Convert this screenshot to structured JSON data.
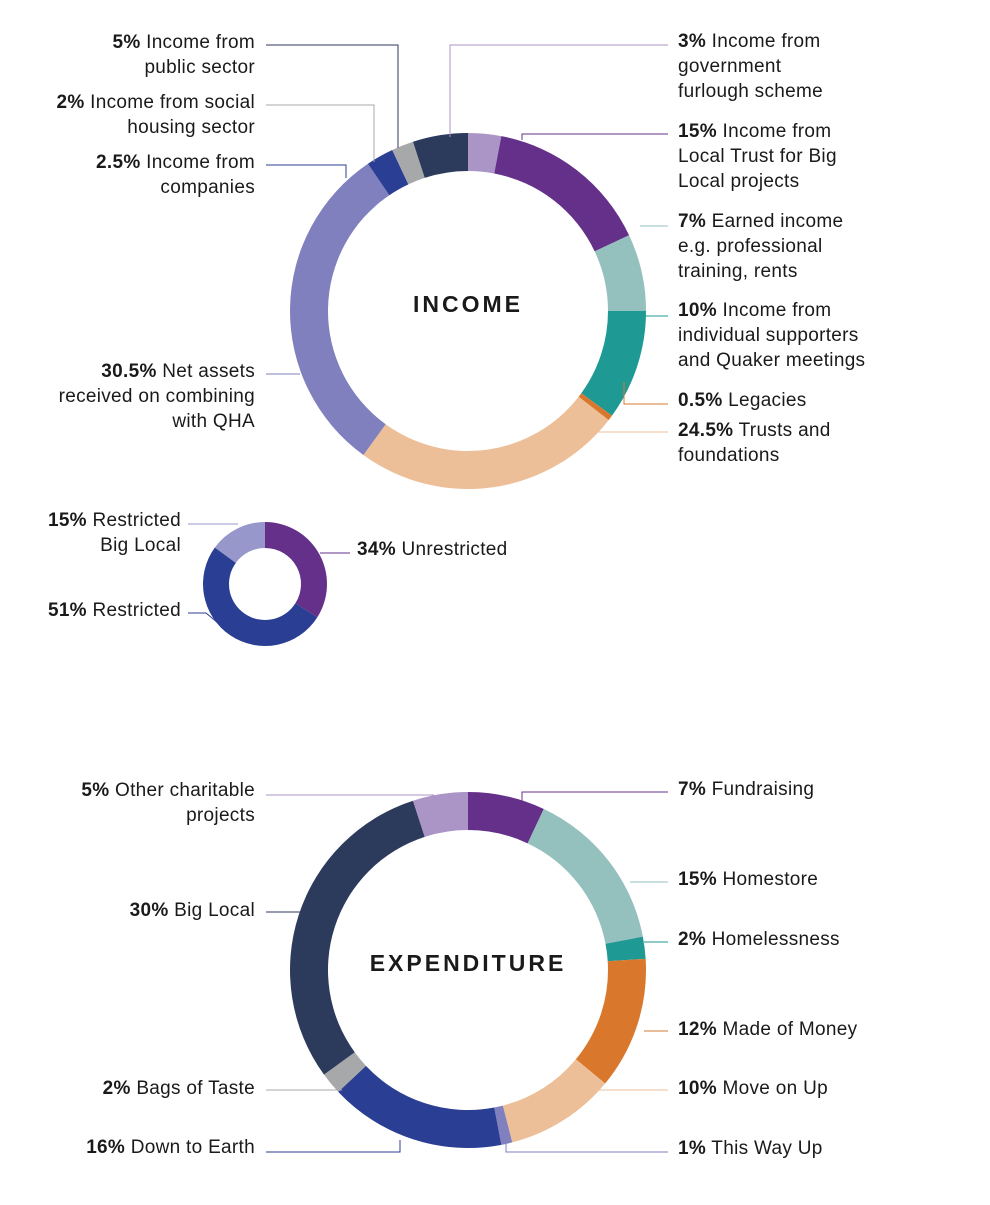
{
  "chart_data": [
    {
      "type": "pie",
      "title": "INCOME",
      "slices": [
        {
          "pct": "3%",
          "value": 3,
          "lines": [
            "Income from",
            "government",
            "furlough scheme"
          ],
          "color": "#ab94c6"
        },
        {
          "pct": "15%",
          "value": 15,
          "lines": [
            "Income from",
            "Local Trust for Big",
            "Local projects"
          ],
          "color": "#643089"
        },
        {
          "pct": "7%",
          "value": 7,
          "lines": [
            "Earned income",
            "e.g. professional",
            "training, rents"
          ],
          "color": "#94c0bd"
        },
        {
          "pct": "10%",
          "value": 10,
          "lines": [
            "Income from",
            "individual supporters",
            "and Quaker meetings"
          ],
          "color": "#1e9994"
        },
        {
          "pct": "0.5%",
          "value": 0.5,
          "lines": [
            "Legacies"
          ],
          "color": "#d9782c"
        },
        {
          "pct": "24.5%",
          "value": 24.5,
          "lines": [
            "Trusts and",
            "foundations"
          ],
          "color": "#ecbf98"
        },
        {
          "pct": "30.5%",
          "value": 30.5,
          "lines": [
            "Net assets",
            "received on combining",
            "with QHA"
          ],
          "color": "#7f80bd"
        },
        {
          "pct": "2.5%",
          "value": 2.5,
          "lines": [
            "Income from",
            "companies"
          ],
          "color": "#2a3e93"
        },
        {
          "pct": "2%",
          "value": 2,
          "lines": [
            "Income from social",
            "housing sector"
          ],
          "color": "#a7a8a9"
        },
        {
          "pct": "5%",
          "value": 5,
          "lines": [
            "Income from",
            "public sector"
          ],
          "color": "#2c3a5c"
        }
      ]
    },
    {
      "type": "pie",
      "title": "",
      "slices": [
        {
          "pct": "34%",
          "value": 34,
          "lines": [
            "Unrestricted"
          ],
          "color": "#643089"
        },
        {
          "pct": "51%",
          "value": 51,
          "lines": [
            "Restricted"
          ],
          "color": "#2a3e93"
        },
        {
          "pct": "15%",
          "value": 15,
          "lines": [
            "Restricted",
            "Big Local"
          ],
          "color": "#9797cb"
        }
      ]
    },
    {
      "type": "pie",
      "title": "EXPENDITURE",
      "slices": [
        {
          "pct": "7%",
          "value": 7,
          "lines": [
            "Fundraising"
          ],
          "color": "#643089"
        },
        {
          "pct": "15%",
          "value": 15,
          "lines": [
            "Homestore"
          ],
          "color": "#94c0bd"
        },
        {
          "pct": "2%",
          "value": 2,
          "lines": [
            "Homelessness"
          ],
          "color": "#1e9994"
        },
        {
          "pct": "12%",
          "value": 12,
          "lines": [
            "Made of Money"
          ],
          "color": "#d9782c"
        },
        {
          "pct": "10%",
          "value": 10,
          "lines": [
            "Move on Up"
          ],
          "color": "#ecbf98"
        },
        {
          "pct": "1%",
          "value": 1,
          "lines": [
            "This Way Up"
          ],
          "color": "#7f80bd"
        },
        {
          "pct": "16%",
          "value": 16,
          "lines": [
            "Down to Earth"
          ],
          "color": "#2a3e93"
        },
        {
          "pct": "2%",
          "value": 2,
          "lines": [
            "Bags of Taste"
          ],
          "color": "#a7a8a9"
        },
        {
          "pct": "30%",
          "value": 30,
          "lines": [
            "Big Local"
          ],
          "color": "#2c3a5c"
        },
        {
          "pct": "5%",
          "value": 5,
          "lines": [
            "Other charitable",
            "projects"
          ],
          "color": "#ab94c6"
        }
      ]
    }
  ]
}
